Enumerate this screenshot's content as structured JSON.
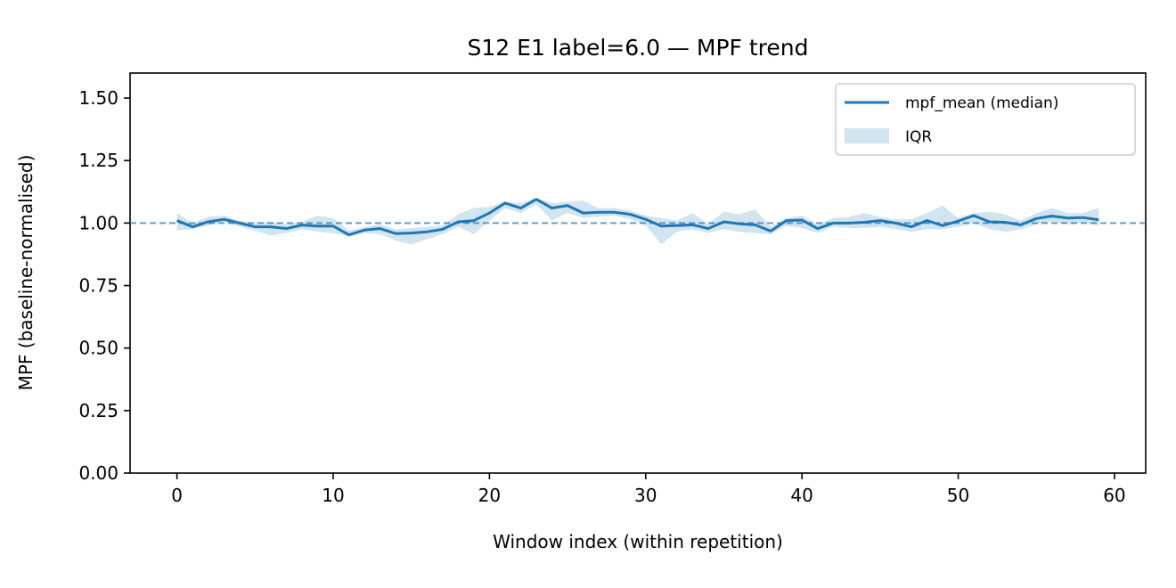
{
  "chart_data": {
    "type": "line",
    "title": "S12 E1 label=6.0 — MPF trend",
    "xlabel": "Window index (within repetition)",
    "ylabel": "MPF (baseline-normalised)",
    "xlim": [
      -3,
      62
    ],
    "ylim": [
      0.0,
      1.6
    ],
    "xticks": [
      0,
      10,
      20,
      30,
      40,
      50,
      60
    ],
    "xtick_labels": [
      "0",
      "10",
      "20",
      "30",
      "40",
      "50",
      "60"
    ],
    "yticks": [
      0.0,
      0.25,
      0.5,
      0.75,
      1.0,
      1.25,
      1.5
    ],
    "ytick_labels": [
      "0.00",
      "0.25",
      "0.50",
      "0.75",
      "1.00",
      "1.25",
      "1.50"
    ],
    "grid": false,
    "legend_position": "top-right",
    "reference_line": {
      "y": 1.0,
      "style": "dashed"
    },
    "x": [
      0,
      1,
      2,
      3,
      4,
      5,
      6,
      7,
      8,
      9,
      10,
      11,
      12,
      13,
      14,
      15,
      16,
      17,
      18,
      19,
      20,
      21,
      22,
      23,
      24,
      25,
      26,
      27,
      28,
      29,
      30,
      31,
      32,
      33,
      34,
      35,
      36,
      37,
      38,
      39,
      40,
      41,
      42,
      43,
      44,
      45,
      46,
      47,
      48,
      49,
      50,
      51,
      52,
      53,
      54,
      55,
      56,
      57,
      58,
      59
    ],
    "series": [
      {
        "name": "mpf_mean (median)",
        "color": "#1f77b4",
        "values": [
          1.01,
          0.985,
          1.005,
          1.015,
          1.0,
          0.985,
          0.985,
          0.978,
          0.992,
          0.988,
          0.988,
          0.953,
          0.972,
          0.978,
          0.958,
          0.96,
          0.965,
          0.975,
          1.005,
          1.01,
          1.04,
          1.08,
          1.06,
          1.095,
          1.06,
          1.07,
          1.04,
          1.043,
          1.043,
          1.035,
          1.015,
          0.988,
          0.99,
          0.993,
          0.978,
          1.005,
          0.997,
          0.993,
          0.968,
          1.01,
          1.012,
          0.978,
          1.0,
          1.0,
          1.003,
          1.01,
          1.0,
          0.985,
          1.01,
          0.99,
          1.008,
          1.03,
          1.005,
          1.003,
          0.993,
          1.018,
          1.028,
          1.02,
          1.022,
          1.013
        ]
      },
      {
        "name": "IQR",
        "color": "#1f77b4",
        "lower": [
          0.97,
          0.975,
          0.99,
          1.005,
          0.985,
          0.97,
          0.95,
          0.96,
          0.975,
          0.965,
          0.96,
          0.945,
          0.96,
          0.955,
          0.93,
          0.915,
          0.935,
          0.955,
          0.985,
          0.955,
          1.01,
          1.06,
          1.04,
          1.075,
          1.01,
          1.04,
          1.02,
          1.025,
          1.03,
          1.015,
          0.99,
          0.915,
          0.965,
          0.975,
          0.96,
          0.975,
          0.965,
          0.96,
          0.955,
          0.99,
          0.98,
          0.96,
          0.985,
          0.98,
          0.98,
          0.985,
          0.975,
          0.965,
          0.975,
          0.975,
          0.985,
          1.0,
          0.975,
          0.965,
          0.975,
          0.995,
          1.005,
          0.995,
          1.0,
          0.99
        ],
        "upper": [
          1.04,
          1.0,
          1.025,
          1.03,
          1.01,
          1.0,
          1.005,
          0.995,
          1.005,
          1.03,
          1.02,
          0.97,
          0.985,
          0.995,
          0.975,
          0.98,
          0.985,
          0.99,
          1.035,
          1.06,
          1.065,
          1.085,
          1.08,
          1.1,
          1.08,
          1.085,
          1.09,
          1.06,
          1.06,
          1.05,
          1.03,
          1.02,
          1.01,
          1.04,
          0.995,
          1.045,
          1.035,
          1.055,
          0.985,
          1.02,
          1.03,
          0.995,
          1.02,
          1.025,
          1.04,
          1.025,
          1.015,
          1.015,
          1.04,
          1.07,
          1.02,
          1.04,
          1.045,
          1.035,
          1.01,
          1.04,
          1.06,
          1.04,
          1.04,
          1.06
        ]
      }
    ]
  }
}
